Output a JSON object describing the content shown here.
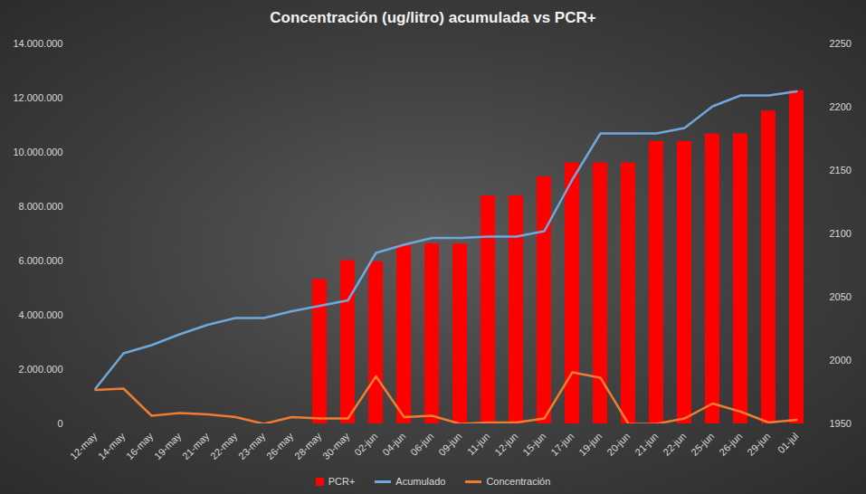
{
  "chart_data": {
    "type": "combo",
    "title": "Concentración (ug/litro) acumulada vs PCR+",
    "categories": [
      "12-may",
      "14-may",
      "16-may",
      "19-may",
      "21-may",
      "22-may",
      "23-may",
      "26-may",
      "28-may",
      "30-may",
      "02-jun",
      "04-jun",
      "06-jun",
      "09-jun",
      "11-jun",
      "12-jun",
      "15-jun",
      "17-jun",
      "19-jun",
      "20-jun",
      "21-jun",
      "22-jun",
      "25-jun",
      "26-jun",
      "29-jun",
      "01-jul"
    ],
    "series": [
      {
        "name": "PCR+",
        "type": "bar",
        "axis": "y2",
        "color": "#ff0000",
        "values": [
          null,
          null,
          null,
          null,
          null,
          null,
          null,
          null,
          2064,
          2079,
          2078,
          2091,
          2092,
          2092,
          2130,
          2130,
          2145,
          2156,
          2156,
          2156,
          2173,
          2173,
          2179,
          2179,
          2197,
          2213
        ]
      },
      {
        "name": "Acumulado",
        "type": "line",
        "color": "#6fa8dc",
        "values": [
          1300000,
          2600000,
          2900000,
          3300000,
          3650000,
          3900000,
          3900000,
          4150000,
          4350000,
          4550000,
          6300000,
          6600000,
          6850000,
          6850000,
          6900000,
          6900000,
          7100000,
          9000000,
          10700000,
          10700000,
          10700000,
          10900000,
          11700000,
          12100000,
          12100000,
          12250000
        ]
      },
      {
        "name": "Concentración",
        "type": "line",
        "color": "#ed7d31",
        "values": [
          1250000,
          1300000,
          300000,
          400000,
          350000,
          250000,
          0,
          250000,
          200000,
          200000,
          1750000,
          250000,
          300000,
          0,
          50000,
          50000,
          200000,
          1900000,
          1700000,
          0,
          0,
          200000,
          750000,
          450000,
          50000,
          150000
        ]
      }
    ],
    "ylim": [
      0,
      14000000
    ],
    "yticks": [
      0,
      {
        "value": 2000000,
        "label": "2.000.000"
      },
      {
        "value": 4000000,
        "label": "4.000.000"
      },
      {
        "value": 6000000,
        "label": "6.000.000"
      },
      {
        "value": 8000000,
        "label": "8.000.000"
      },
      {
        "value": 10000000,
        "label": "10.000.000"
      },
      {
        "value": 12000000,
        "label": "12.000.000"
      },
      {
        "value": 14000000,
        "label": "14.000.000"
      }
    ],
    "y2lim": [
      1950,
      2250
    ],
    "y2ticks": [
      1950,
      2000,
      2050,
      2100,
      2150,
      2200,
      2250
    ],
    "grid": false,
    "legend": "bottom"
  }
}
